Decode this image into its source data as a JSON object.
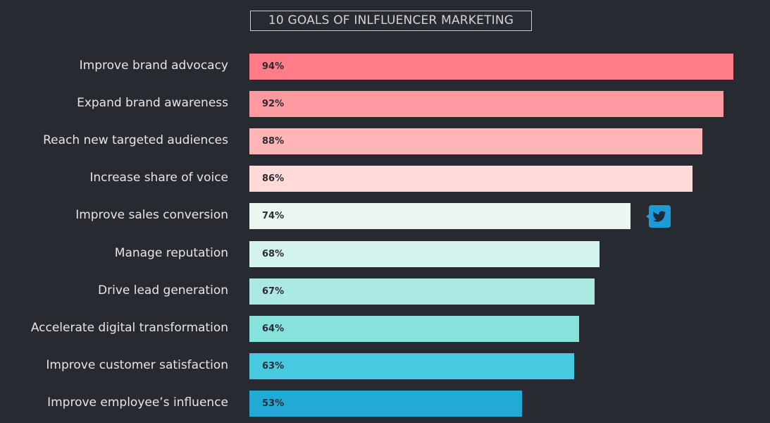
{
  "chart_data": {
    "type": "bar",
    "orientation": "horizontal",
    "title": "10 GOALS OF INLFLUENCER MARKETING",
    "categories": [
      "Improve brand advocacy",
      "Expand brand awareness",
      "Reach new targeted audiences",
      "Increase share of voice",
      "Improve sales conversion",
      "Manage reputation",
      "Drive lead generation",
      "Accelerate digital transformation",
      "Improve customer satisfaction",
      "Improve employee’s influence"
    ],
    "values": [
      94,
      92,
      88,
      86,
      74,
      68,
      67,
      64,
      63,
      53
    ],
    "value_labels": [
      "94%",
      "92%",
      "88%",
      "86%",
      "74%",
      "68%",
      "67%",
      "64%",
      "63%",
      "53%"
    ],
    "colors": [
      "#ff7d87",
      "#ff9aa1",
      "#ffb5b8",
      "#ffdad8",
      "#ebf6f1",
      "#d3f3ec",
      "#ade9e3",
      "#88e2dc",
      "#47c9df",
      "#22a9d6"
    ],
    "xlim": [
      0,
      100
    ],
    "grid": false,
    "legend": "none"
  },
  "share": {
    "icon": "twitter-icon",
    "color": "#1c9bd4"
  },
  "background": "#282a31"
}
